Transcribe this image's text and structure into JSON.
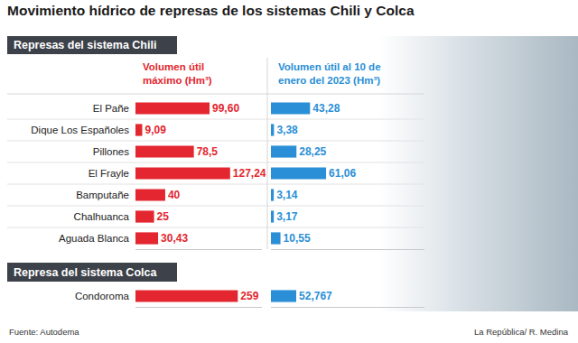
{
  "title": "Movimiento hídrico de represas de los sistemas Chili y Colca",
  "source": "Fuente: Autodema",
  "credit": "La República/ R. Medina",
  "chart_data": [
    {
      "type": "bar",
      "orientation": "horizontal",
      "title": "Represas del sistema Chili",
      "categories": [
        "El Pañe",
        "Dique Los Españoles",
        "Pillones",
        "El Frayle",
        "Bamputañe",
        "Chalhuanca",
        "Aguada Blanca"
      ],
      "series": [
        {
          "name": "Volumen útil máximo (Hm³)",
          "color": "#e3262f",
          "values": [
            99.6,
            9.09,
            78.5,
            127.24,
            40,
            25,
            30.43
          ],
          "value_labels": [
            "99,60",
            "9,09",
            "78,5",
            "127,24",
            "40",
            "25",
            "30,43"
          ]
        },
        {
          "name": "Volumen útil al 10 de enero del 2023 (Hm³)",
          "color": "#2a8fd6",
          "values": [
            43.28,
            3.38,
            28.25,
            61.06,
            3.14,
            3.17,
            10.55
          ],
          "value_labels": [
            "43,28",
            "3,38",
            "28,25",
            "61,06",
            "3,14",
            "3,17",
            "10,55"
          ]
        }
      ],
      "xlim": [
        0,
        170
      ],
      "data_labels": true,
      "grid": false,
      "tick_labels": "y"
    },
    {
      "type": "bar",
      "orientation": "horizontal",
      "title": "Represa del sistema Colca",
      "categories": [
        "Condoroma"
      ],
      "series": [
        {
          "color": "#e3262f",
          "values": [
            259
          ],
          "value_labels": [
            "259"
          ]
        },
        {
          "color": "#2a8fd6",
          "values": [
            52.767
          ],
          "value_labels": [
            "52,767"
          ]
        }
      ],
      "xlim": [
        0,
        320
      ],
      "data_labels": true,
      "grid": false,
      "tick_labels": "y"
    }
  ]
}
